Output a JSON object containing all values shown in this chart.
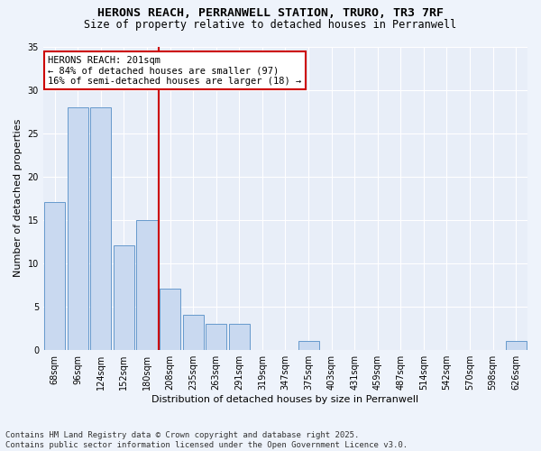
{
  "title_line1": "HERONS REACH, PERRANWELL STATION, TRURO, TR3 7RF",
  "title_line2": "Size of property relative to detached houses in Perranwell",
  "xlabel": "Distribution of detached houses by size in Perranwell",
  "ylabel": "Number of detached properties",
  "categories": [
    "68sqm",
    "96sqm",
    "124sqm",
    "152sqm",
    "180sqm",
    "208sqm",
    "235sqm",
    "263sqm",
    "291sqm",
    "319sqm",
    "347sqm",
    "375sqm",
    "403sqm",
    "431sqm",
    "459sqm",
    "487sqm",
    "514sqm",
    "542sqm",
    "570sqm",
    "598sqm",
    "626sqm"
  ],
  "values": [
    17,
    28,
    28,
    12,
    15,
    7,
    4,
    3,
    3,
    0,
    0,
    1,
    0,
    0,
    0,
    0,
    0,
    0,
    0,
    0,
    1
  ],
  "bar_color": "#c9d9f0",
  "bar_edge_color": "#6699cc",
  "vline_index": 5,
  "vline_color": "#cc0000",
  "annotation_line1": "HERONS REACH: 201sqm",
  "annotation_line2": "← 84% of detached houses are smaller (97)",
  "annotation_line3": "16% of semi-detached houses are larger (18) →",
  "annotation_box_color": "#cc0000",
  "ylim": [
    0,
    35
  ],
  "yticks": [
    0,
    5,
    10,
    15,
    20,
    25,
    30,
    35
  ],
  "footer": "Contains HM Land Registry data © Crown copyright and database right 2025.\nContains public sector information licensed under the Open Government Licence v3.0.",
  "fig_facecolor": "#eef3fb",
  "ax_facecolor": "#e8eef8",
  "grid_color": "#ffffff",
  "title_fontsize": 9.5,
  "subtitle_fontsize": 8.5,
  "axis_label_fontsize": 8,
  "tick_fontsize": 7,
  "annotation_fontsize": 7.5,
  "footer_fontsize": 6.5
}
